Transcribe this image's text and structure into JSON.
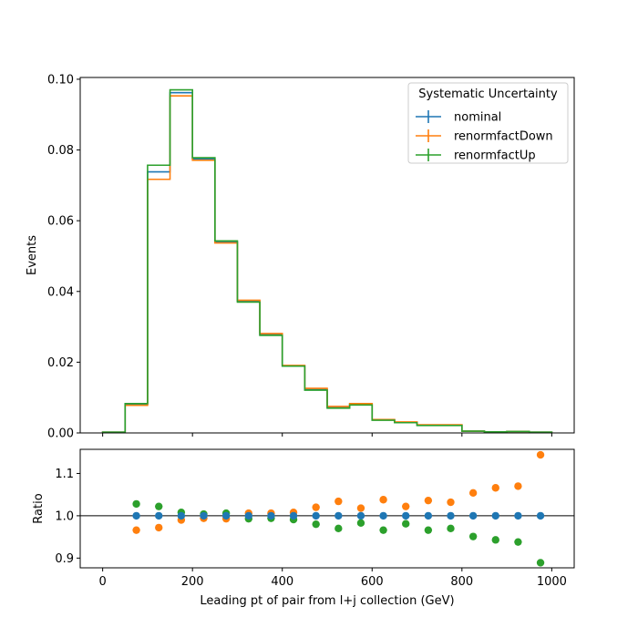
{
  "chart_data": [
    {
      "type": "step",
      "xlabel": "",
      "ylabel": "Events",
      "xlim": [
        -50,
        1050
      ],
      "ylim": [
        0,
        0.1005
      ],
      "yticks": [
        0.0,
        0.02,
        0.04,
        0.06,
        0.08,
        0.1
      ],
      "ytick_labels": [
        "0.00",
        "0.02",
        "0.04",
        "0.06",
        "0.08",
        "0.10"
      ],
      "bin_edges": [
        0,
        50,
        100,
        150,
        200,
        250,
        300,
        350,
        400,
        450,
        500,
        550,
        600,
        650,
        700,
        750,
        800,
        850,
        900,
        950,
        1000
      ],
      "legend": {
        "title": "Systematic Uncertainty",
        "placement": "upper right"
      },
      "series": [
        {
          "name": "nominal",
          "color": "#1f77b4",
          "values": [
            0.0002,
            0.0081,
            0.0738,
            0.0962,
            0.0775,
            0.054,
            0.0373,
            0.0278,
            0.019,
            0.0123,
            0.0072,
            0.0081,
            0.0037,
            0.003,
            0.0022,
            0.0022,
            0.0005,
            0.0003,
            0.0004,
            0.0002
          ]
        },
        {
          "name": "renormfactDown",
          "color": "#ff7f0e",
          "values": [
            0.0002,
            0.0078,
            0.0717,
            0.0953,
            0.0771,
            0.0537,
            0.0375,
            0.0281,
            0.0191,
            0.0126,
            0.0075,
            0.0083,
            0.0038,
            0.0031,
            0.0023,
            0.0023,
            0.0005,
            0.0003,
            0.0004,
            0.0002
          ]
        },
        {
          "name": "renormfactUp",
          "color": "#2ca02c",
          "values": [
            0.0002,
            0.0083,
            0.0757,
            0.097,
            0.0778,
            0.0543,
            0.037,
            0.0276,
            0.0189,
            0.0121,
            0.007,
            0.0079,
            0.0036,
            0.0029,
            0.0021,
            0.0021,
            0.0005,
            0.0003,
            0.0004,
            0.0002
          ]
        }
      ]
    },
    {
      "type": "scatter",
      "xlabel": "Leading pt of pair from l+j collection (GeV)",
      "ylabel": "Ratio",
      "xlim": [
        -50,
        1050
      ],
      "ylim": [
        0.877,
        1.157
      ],
      "xticks": [
        0,
        200,
        400,
        600,
        800,
        1000
      ],
      "xtick_labels": [
        "0",
        "200",
        "400",
        "600",
        "800",
        "1000"
      ],
      "yticks": [
        0.9,
        1.0,
        1.1
      ],
      "ytick_labels": [
        "0.9",
        "1.0",
        "1.1"
      ],
      "reference_line": 1.0,
      "x": [
        75,
        125,
        175,
        225,
        275,
        325,
        375,
        425,
        475,
        525,
        575,
        625,
        675,
        725,
        775,
        825,
        875,
        925,
        975
      ],
      "series": [
        {
          "name": "nominal",
          "color": "#1f77b4",
          "values": [
            1.0,
            1.0,
            1.0,
            1.0,
            1.0,
            1.0,
            1.0,
            1.0,
            1.0,
            1.0,
            1.0,
            1.0,
            1.0,
            1.0,
            1.0,
            1.0,
            1.0,
            1.0,
            1.0
          ]
        },
        {
          "name": "renormfactDown",
          "color": "#ff7f0e",
          "values": [
            0.966,
            0.972,
            0.99,
            0.994,
            0.993,
            1.006,
            1.006,
            1.008,
            1.02,
            1.034,
            1.018,
            1.038,
            1.022,
            1.036,
            1.032,
            1.054,
            1.066,
            1.07,
            1.144
          ]
        },
        {
          "name": "renormfactUp",
          "color": "#2ca02c",
          "values": [
            1.028,
            1.022,
            1.008,
            1.004,
            1.006,
            0.993,
            0.994,
            0.991,
            0.98,
            0.97,
            0.983,
            0.966,
            0.981,
            0.966,
            0.97,
            0.951,
            0.943,
            0.938,
            0.889
          ]
        }
      ]
    }
  ]
}
